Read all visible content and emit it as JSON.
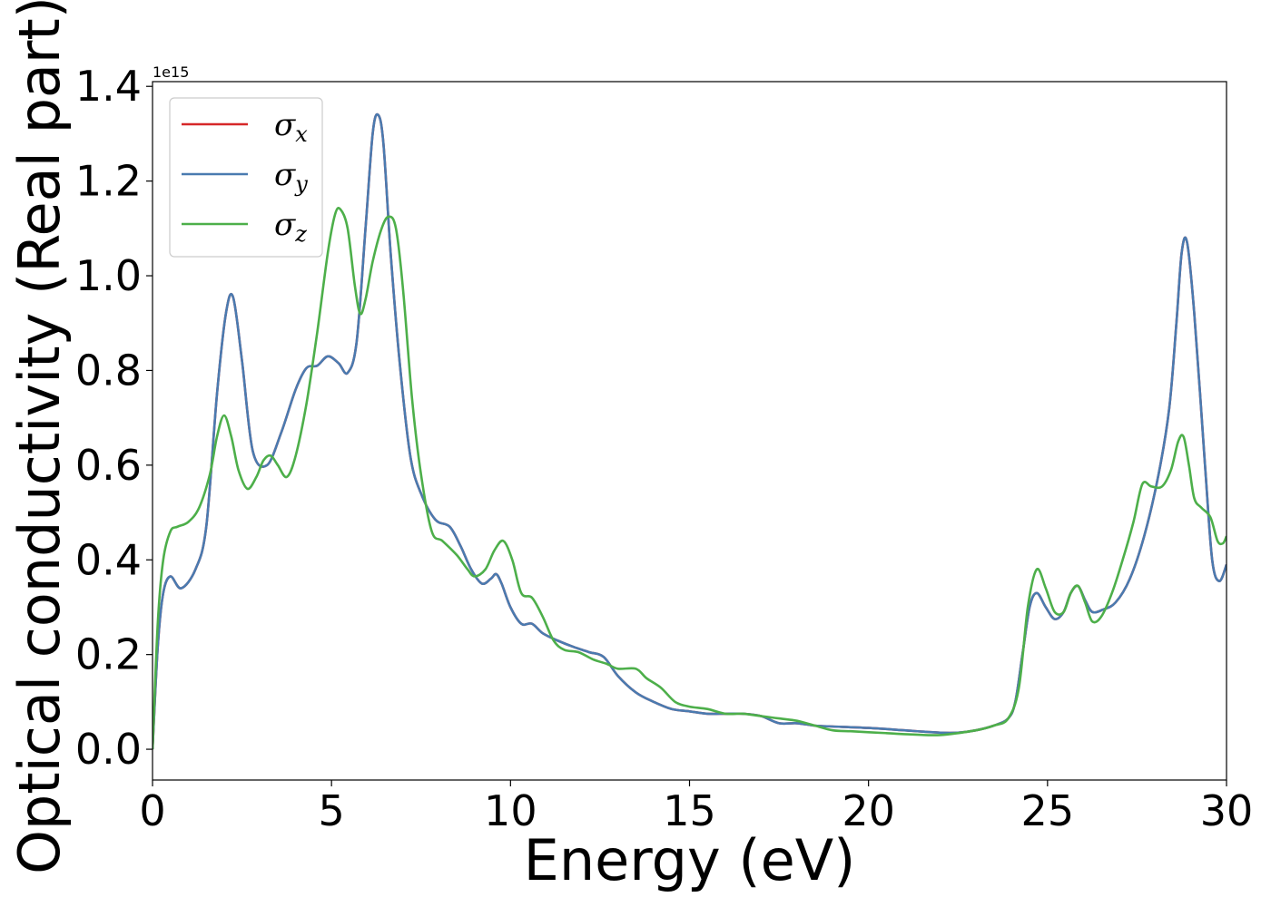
{
  "chart_data": {
    "type": "line",
    "xlabel": "Energy (eV)",
    "ylabel": "Optical conductivity (Real part)",
    "y_offset_label": "1e15",
    "xlim": [
      0,
      30
    ],
    "ylim": [
      -0.065,
      1.41
    ],
    "x_ticks": [
      0,
      5,
      10,
      15,
      20,
      25,
      30
    ],
    "y_ticks": [
      0.0,
      0.2,
      0.4,
      0.6,
      0.8,
      1.0,
      1.2,
      1.4
    ],
    "x_tick_labels": [
      "0",
      "5",
      "10",
      "15",
      "20",
      "25",
      "30"
    ],
    "y_tick_labels": [
      "0.0",
      "0.2",
      "0.4",
      "0.6",
      "0.8",
      "1.0",
      "1.2",
      "1.4"
    ],
    "grid": false,
    "legend_position": "top-left",
    "series": [
      {
        "name": "σx",
        "symbol": "σ",
        "subscript": "x",
        "color": "#d62728",
        "x": [
          0,
          0.15,
          0.3,
          0.5,
          0.8,
          1.2,
          1.5,
          1.8,
          2.05,
          2.25,
          2.5,
          2.8,
          3.2,
          3.6,
          4.0,
          4.3,
          4.6,
          4.9,
          5.2,
          5.45,
          5.7,
          5.95,
          6.15,
          6.3,
          6.45,
          6.65,
          6.9,
          7.2,
          7.5,
          7.9,
          8.3,
          8.6,
          8.9,
          9.2,
          9.45,
          9.6,
          9.75,
          10.0,
          10.3,
          10.6,
          10.9,
          11.3,
          11.8,
          12.2,
          12.6,
          13.0,
          13.5,
          14.0,
          14.5,
          15.0,
          15.5,
          16.0,
          16.5,
          17.0,
          17.5,
          18.0,
          18.5,
          19.0,
          20.0,
          21.0,
          22.0,
          22.5,
          23.0,
          23.5,
          23.9,
          24.1,
          24.3,
          24.5,
          24.7,
          24.95,
          25.2,
          25.45,
          25.65,
          25.85,
          26.05,
          26.25,
          26.55,
          26.9,
          27.3,
          27.7,
          28.1,
          28.4,
          28.6,
          28.75,
          28.9,
          29.1,
          29.4,
          29.6,
          29.8,
          30.0
        ],
        "y": [
          0.0,
          0.22,
          0.33,
          0.365,
          0.34,
          0.38,
          0.47,
          0.75,
          0.92,
          0.955,
          0.82,
          0.63,
          0.6,
          0.67,
          0.76,
          0.805,
          0.81,
          0.83,
          0.815,
          0.795,
          0.86,
          1.1,
          1.3,
          1.34,
          1.28,
          1.05,
          0.82,
          0.62,
          0.54,
          0.485,
          0.47,
          0.43,
          0.38,
          0.35,
          0.36,
          0.37,
          0.35,
          0.3,
          0.265,
          0.265,
          0.245,
          0.23,
          0.215,
          0.205,
          0.195,
          0.155,
          0.12,
          0.1,
          0.085,
          0.08,
          0.075,
          0.075,
          0.075,
          0.07,
          0.055,
          0.055,
          0.05,
          0.048,
          0.045,
          0.04,
          0.035,
          0.035,
          0.04,
          0.05,
          0.065,
          0.1,
          0.2,
          0.3,
          0.33,
          0.3,
          0.275,
          0.29,
          0.33,
          0.345,
          0.315,
          0.29,
          0.295,
          0.31,
          0.36,
          0.45,
          0.58,
          0.72,
          0.9,
          1.05,
          1.07,
          0.92,
          0.6,
          0.4,
          0.355,
          0.39
        ]
      },
      {
        "name": "σy",
        "symbol": "σ",
        "subscript": "y",
        "color": "#4a7bb0",
        "x": [
          0,
          0.15,
          0.3,
          0.5,
          0.8,
          1.2,
          1.5,
          1.8,
          2.05,
          2.25,
          2.5,
          2.8,
          3.2,
          3.6,
          4.0,
          4.3,
          4.6,
          4.9,
          5.2,
          5.45,
          5.7,
          5.95,
          6.15,
          6.3,
          6.45,
          6.65,
          6.9,
          7.2,
          7.5,
          7.9,
          8.3,
          8.6,
          8.9,
          9.2,
          9.45,
          9.6,
          9.75,
          10.0,
          10.3,
          10.6,
          10.9,
          11.3,
          11.8,
          12.2,
          12.6,
          13.0,
          13.5,
          14.0,
          14.5,
          15.0,
          15.5,
          16.0,
          16.5,
          17.0,
          17.5,
          18.0,
          18.5,
          19.0,
          20.0,
          21.0,
          22.0,
          22.5,
          23.0,
          23.5,
          23.9,
          24.1,
          24.3,
          24.5,
          24.7,
          24.95,
          25.2,
          25.45,
          25.65,
          25.85,
          26.05,
          26.25,
          26.55,
          26.9,
          27.3,
          27.7,
          28.1,
          28.4,
          28.6,
          28.75,
          28.9,
          29.1,
          29.4,
          29.6,
          29.8,
          30.0
        ],
        "y": [
          0.0,
          0.22,
          0.33,
          0.365,
          0.34,
          0.38,
          0.47,
          0.75,
          0.92,
          0.955,
          0.82,
          0.63,
          0.6,
          0.67,
          0.76,
          0.805,
          0.81,
          0.83,
          0.815,
          0.795,
          0.86,
          1.1,
          1.3,
          1.34,
          1.28,
          1.05,
          0.82,
          0.62,
          0.54,
          0.485,
          0.47,
          0.43,
          0.38,
          0.35,
          0.36,
          0.37,
          0.35,
          0.3,
          0.265,
          0.265,
          0.245,
          0.23,
          0.215,
          0.205,
          0.195,
          0.155,
          0.12,
          0.1,
          0.085,
          0.08,
          0.075,
          0.075,
          0.075,
          0.07,
          0.055,
          0.055,
          0.05,
          0.048,
          0.045,
          0.04,
          0.035,
          0.035,
          0.04,
          0.05,
          0.065,
          0.1,
          0.2,
          0.3,
          0.33,
          0.3,
          0.275,
          0.29,
          0.33,
          0.345,
          0.315,
          0.29,
          0.295,
          0.31,
          0.36,
          0.45,
          0.58,
          0.72,
          0.9,
          1.05,
          1.07,
          0.92,
          0.6,
          0.4,
          0.355,
          0.39
        ]
      },
      {
        "name": "σz",
        "symbol": "σ",
        "subscript": "z",
        "color": "#4daf4a",
        "x": [
          0,
          0.15,
          0.3,
          0.5,
          0.7,
          1.0,
          1.3,
          1.6,
          1.8,
          2.0,
          2.2,
          2.4,
          2.65,
          2.9,
          3.1,
          3.3,
          3.5,
          3.75,
          4.0,
          4.3,
          4.6,
          4.9,
          5.1,
          5.25,
          5.45,
          5.65,
          5.8,
          5.95,
          6.15,
          6.4,
          6.6,
          6.8,
          7.0,
          7.25,
          7.5,
          7.8,
          8.1,
          8.5,
          8.8,
          9.0,
          9.3,
          9.55,
          9.8,
          10.05,
          10.3,
          10.6,
          10.9,
          11.2,
          11.5,
          11.9,
          12.3,
          12.7,
          13.0,
          13.5,
          13.8,
          14.2,
          14.6,
          15.0,
          15.5,
          16.0,
          16.5,
          17.0,
          17.5,
          18.0,
          18.5,
          19.0,
          19.5,
          20.0,
          20.5,
          21.0,
          22.0,
          23.0,
          23.5,
          23.9,
          24.2,
          24.45,
          24.7,
          24.95,
          25.2,
          25.45,
          25.65,
          25.85,
          26.05,
          26.25,
          26.5,
          26.8,
          27.1,
          27.4,
          27.65,
          27.9,
          28.2,
          28.45,
          28.65,
          28.8,
          28.95,
          29.1,
          29.3,
          29.55,
          29.75,
          29.9,
          30.0
        ],
        "y": [
          0.0,
          0.27,
          0.4,
          0.46,
          0.47,
          0.48,
          0.51,
          0.58,
          0.66,
          0.705,
          0.66,
          0.59,
          0.55,
          0.575,
          0.61,
          0.62,
          0.6,
          0.575,
          0.62,
          0.73,
          0.88,
          1.05,
          1.13,
          1.14,
          1.1,
          0.98,
          0.92,
          0.95,
          1.03,
          1.1,
          1.125,
          1.1,
          0.97,
          0.74,
          0.58,
          0.46,
          0.44,
          0.41,
          0.38,
          0.365,
          0.38,
          0.42,
          0.44,
          0.4,
          0.33,
          0.32,
          0.28,
          0.23,
          0.21,
          0.205,
          0.19,
          0.18,
          0.17,
          0.17,
          0.15,
          0.13,
          0.1,
          0.09,
          0.085,
          0.075,
          0.075,
          0.07,
          0.065,
          0.06,
          0.05,
          0.04,
          0.038,
          0.036,
          0.034,
          0.032,
          0.03,
          0.04,
          0.05,
          0.065,
          0.13,
          0.3,
          0.38,
          0.34,
          0.29,
          0.29,
          0.33,
          0.345,
          0.31,
          0.27,
          0.28,
          0.33,
          0.4,
          0.48,
          0.56,
          0.555,
          0.555,
          0.59,
          0.65,
          0.66,
          0.6,
          0.53,
          0.51,
          0.49,
          0.44,
          0.435,
          0.45
        ]
      }
    ]
  }
}
